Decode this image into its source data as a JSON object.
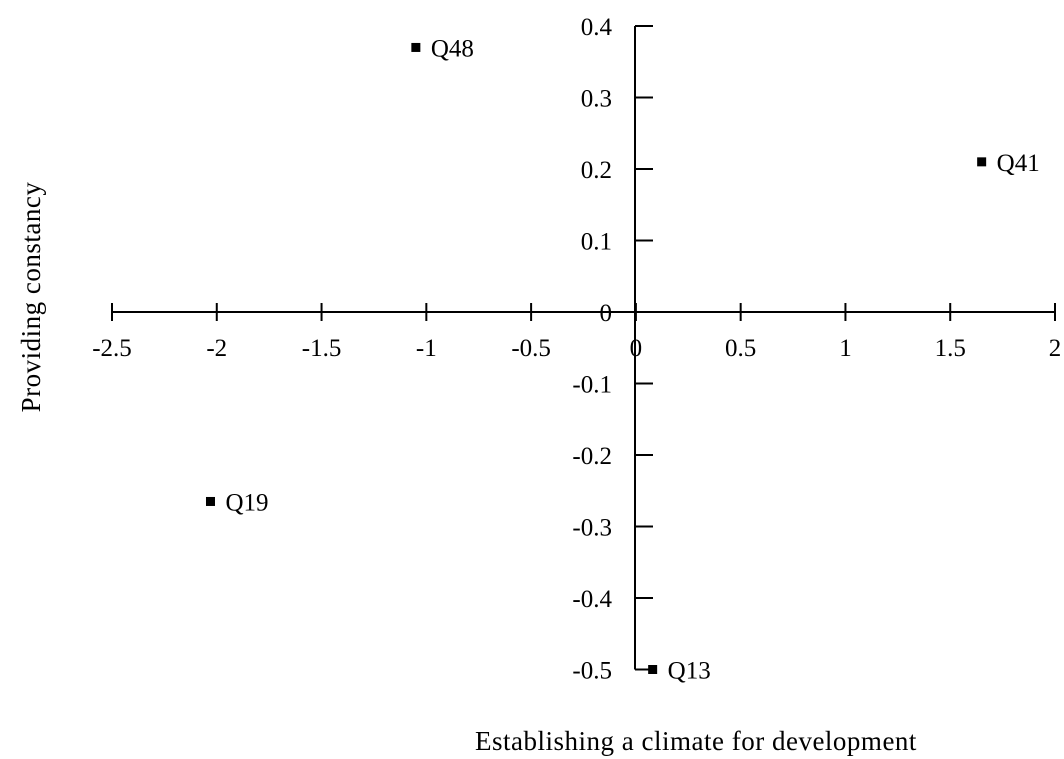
{
  "chart_data": {
    "type": "scatter",
    "title": "",
    "xlabel": "Establishing a climate for development",
    "ylabel": "Providing constancy",
    "xlim": [
      -2.5,
      2
    ],
    "ylim": [
      -0.5,
      0.4
    ],
    "xticks": [
      -2.5,
      -2,
      -1.5,
      -1,
      -0.5,
      0,
      0.5,
      1,
      1.5,
      2
    ],
    "xtick_labels": [
      "-2.5",
      "-2",
      "-1.5",
      "-1",
      "-0.5",
      "0",
      "0.5",
      "1",
      "1.5",
      "2"
    ],
    "yticks": [
      0.4,
      0.3,
      0.2,
      0.1,
      0,
      -0.1,
      -0.2,
      -0.3,
      -0.4,
      -0.5
    ],
    "ytick_labels": [
      "0.4",
      "0.3",
      "0.2",
      "0.1",
      "0",
      "-0.1",
      "-0.2",
      "-0.3",
      "-0.4",
      "-0.5"
    ],
    "grid": false,
    "legend": "none",
    "marker": "square",
    "color": "#000000",
    "points": [
      {
        "label": "Q48",
        "x": -1.05,
        "y": 0.37
      },
      {
        "label": "Q41",
        "x": 1.65,
        "y": 0.21
      },
      {
        "label": "Q19",
        "x": -2.03,
        "y": -0.265
      },
      {
        "label": "Q13",
        "x": 0.08,
        "y": -0.5
      }
    ]
  }
}
